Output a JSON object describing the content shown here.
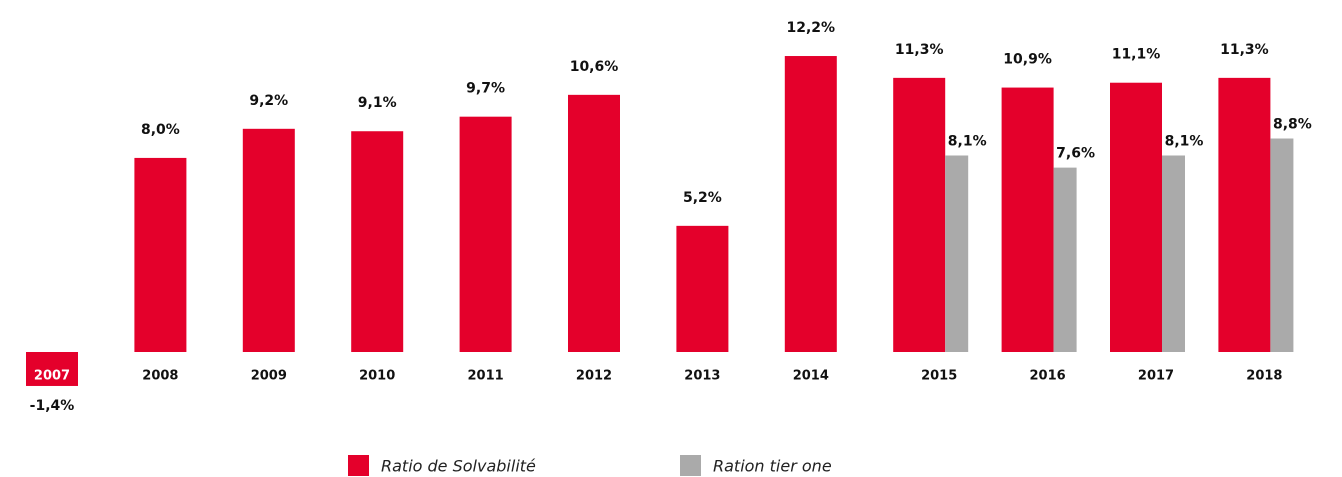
{
  "chart_data": {
    "type": "bar",
    "categories": [
      "2007",
      "2008",
      "2009",
      "2010",
      "2011",
      "2012",
      "2013",
      "2014",
      "2015",
      "2016",
      "2017",
      "2018"
    ],
    "series": [
      {
        "name": "Ratio de Solvabilité",
        "color": "#e4002b",
        "values": [
          -1.4,
          8.0,
          9.2,
          9.1,
          9.7,
          10.6,
          5.2,
          12.2,
          11.3,
          10.9,
          11.1,
          11.3
        ],
        "value_labels": [
          "-1,4%",
          "8,0%",
          "9,2%",
          "9,1%",
          "9,7%",
          "10,6%",
          "5,2%",
          "12,2%",
          "11,3%",
          "10,9%",
          "11,1%",
          "11,3%"
        ]
      },
      {
        "name": "Ration tier one",
        "color": "#aaaaaa",
        "values": [
          null,
          null,
          null,
          null,
          null,
          null,
          null,
          null,
          8.1,
          7.6,
          8.1,
          8.8
        ],
        "value_labels": [
          null,
          null,
          null,
          null,
          null,
          null,
          null,
          null,
          "8,1%",
          "7,6%",
          "8,1%",
          "8,8%"
        ]
      }
    ]
  }
}
